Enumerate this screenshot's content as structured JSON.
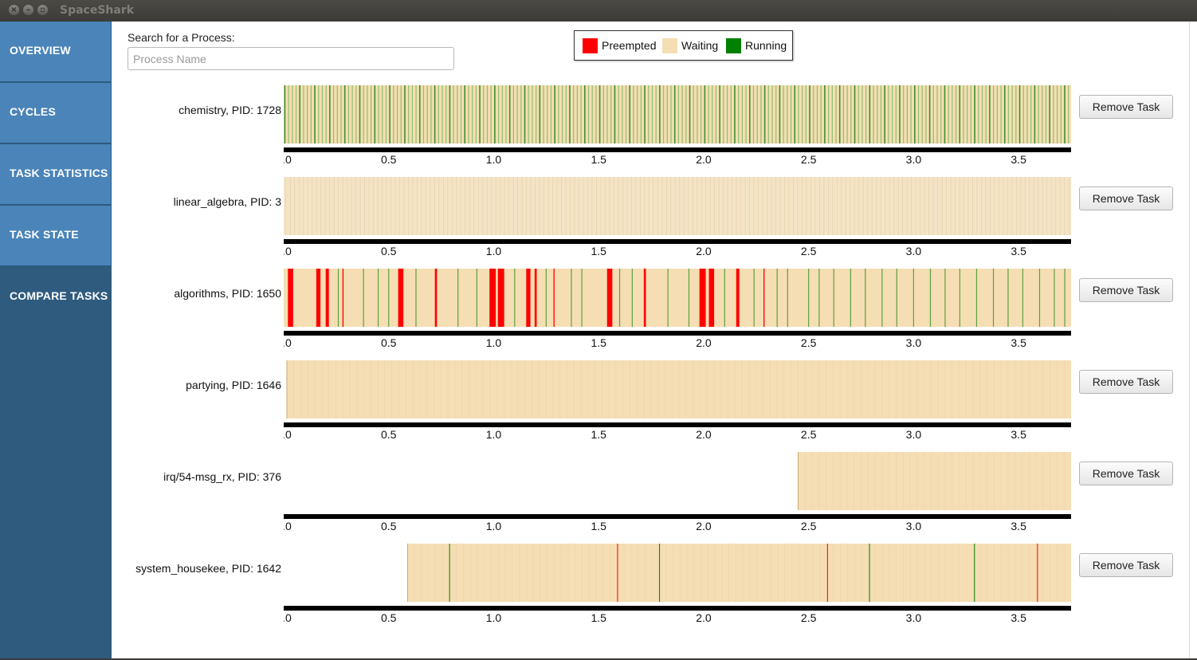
{
  "window": {
    "title": "SpaceShark"
  },
  "sidebar": {
    "items": [
      {
        "label": "OVERVIEW"
      },
      {
        "label": "CYCLES"
      },
      {
        "label": "TASK STATISTICS"
      },
      {
        "label": "TASK STATE"
      },
      {
        "label": "COMPARE TASKS"
      }
    ]
  },
  "search": {
    "label": "Search for a Process:",
    "placeholder": "Process Name",
    "value": ""
  },
  "legend": {
    "items": [
      {
        "label": "Preempted",
        "color": "#ff0000"
      },
      {
        "label": "Waiting",
        "color": "#f5deb3"
      },
      {
        "label": "Running",
        "color": "#008000"
      }
    ]
  },
  "colors": {
    "sidebar_bg": "#2f5b7e",
    "nav_button_bg": "#4a84b8",
    "preempted": "#ff0000",
    "waiting": "#f5deb3",
    "running": "#008000",
    "axis": "#000000"
  },
  "tasks": {
    "remove_label": "Remove Task",
    "axis_ticks": [
      "0.0",
      "0.5",
      "1.0",
      "1.5",
      "2.0",
      "2.5",
      "3.0",
      "3.5"
    ],
    "items": [
      {
        "label": "chemistry, PID: 1728"
      },
      {
        "label": "linear_algebra, PID: 3"
      },
      {
        "label": "algorithms, PID: 1650"
      },
      {
        "label": "partying, PID: 1646"
      },
      {
        "label": "irq/54-msg_rx, PID: 376"
      },
      {
        "label": "system_housekee, PID: 1642"
      }
    ]
  },
  "chart_data": [
    {
      "type": "timeline",
      "series_name": "chemistry, PID: 1728",
      "x_ticks": [
        0.0,
        0.5,
        1.0,
        1.5,
        2.0,
        2.5,
        3.0,
        3.5
      ],
      "xlim": [
        0.0,
        3.75
      ],
      "segments": [
        {
          "state": "running",
          "start": 0.0,
          "end": 3.75,
          "pattern": "dense alternating running/waiting slices (~200)"
        }
      ]
    },
    {
      "type": "timeline",
      "series_name": "linear_algebra, PID: 3",
      "x_ticks": [
        0.0,
        0.5,
        1.0,
        1.5,
        2.0,
        2.5,
        3.0,
        3.5
      ],
      "xlim": [
        0.0,
        3.75
      ],
      "segments": [
        {
          "state": "waiting",
          "start": 0.0,
          "end": 3.75,
          "pattern": "dense waiting slices with faint separators"
        }
      ]
    },
    {
      "type": "timeline",
      "series_name": "algorithms, PID: 1650",
      "x_ticks": [
        0.0,
        0.5,
        1.0,
        1.5,
        2.0,
        2.5,
        3.0,
        3.5
      ],
      "xlim": [
        0.0,
        3.75
      ],
      "background_state": "waiting",
      "preempted": [
        [
          0.02,
          0.045
        ],
        [
          0.155,
          0.175
        ],
        [
          0.2,
          0.215
        ],
        [
          0.28,
          0.285
        ],
        [
          0.545,
          0.57
        ],
        [
          0.72,
          0.73
        ],
        [
          0.98,
          1.01
        ],
        [
          1.02,
          1.05
        ],
        [
          1.155,
          1.175
        ],
        [
          1.195,
          1.205
        ],
        [
          1.285,
          1.29
        ],
        [
          1.54,
          1.565
        ],
        [
          1.715,
          1.725
        ],
        [
          1.98,
          2.01
        ],
        [
          2.025,
          2.05
        ],
        [
          2.155,
          2.17
        ],
        [
          2.285,
          2.29
        ]
      ],
      "running_marks": [
        0.26,
        0.38,
        0.45,
        0.5,
        0.63,
        0.83,
        0.92,
        1.1,
        1.25,
        1.37,
        1.42,
        1.6,
        1.66,
        1.83,
        1.93,
        2.1,
        2.24,
        2.35,
        2.4,
        2.5,
        2.55,
        2.62,
        2.7,
        2.77,
        2.85,
        2.92,
        3.0,
        3.08,
        3.15,
        3.22,
        3.3,
        3.38,
        3.45,
        3.52,
        3.6,
        3.67,
        3.72
      ]
    },
    {
      "type": "timeline",
      "series_name": "partying, PID: 1646",
      "x_ticks": [
        0.0,
        0.5,
        1.0,
        1.5,
        2.0,
        2.5,
        3.0,
        3.5
      ],
      "xlim": [
        0.0,
        3.75
      ],
      "segments": [
        {
          "state": "waiting",
          "start": 0.015,
          "end": 3.75
        }
      ]
    },
    {
      "type": "timeline",
      "series_name": "irq/54-msg_rx, PID: 376",
      "x_ticks": [
        0.0,
        0.5,
        1.0,
        1.5,
        2.0,
        2.5,
        3.0,
        3.5
      ],
      "xlim": [
        0.0,
        3.75
      ],
      "segments": [
        {
          "state": "waiting",
          "start": 2.45,
          "end": 3.75
        }
      ]
    },
    {
      "type": "timeline",
      "series_name": "system_housekee, PID: 1642",
      "x_ticks": [
        0.0,
        0.5,
        1.0,
        1.5,
        2.0,
        2.5,
        3.0,
        3.5
      ],
      "xlim": [
        0.0,
        3.75
      ],
      "segments": [
        {
          "state": "waiting",
          "start": 0.59,
          "end": 3.75
        }
      ],
      "preempted_marks": [
        1.59,
        2.59,
        3.59
      ],
      "running_marks": [
        0.79,
        1.79,
        2.79,
        3.29
      ]
    }
  ]
}
